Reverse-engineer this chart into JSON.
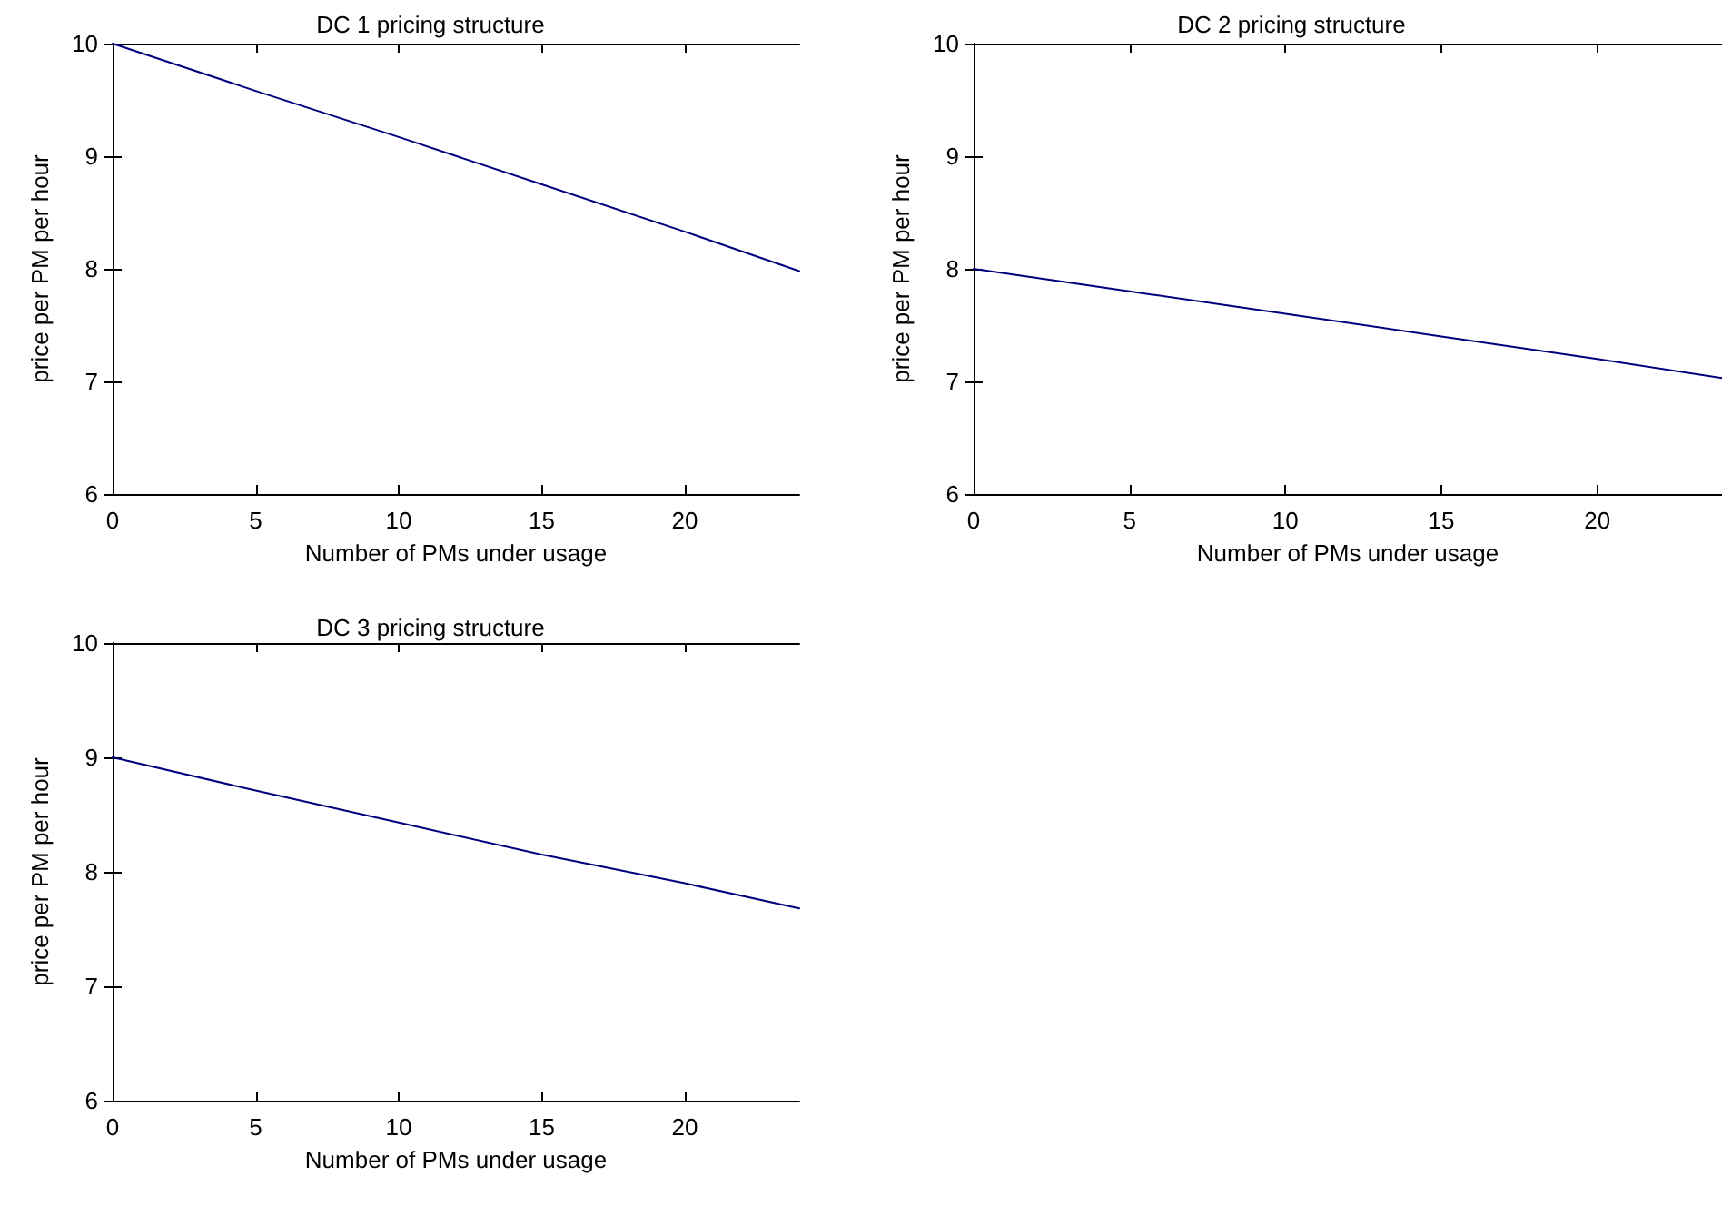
{
  "chart_data": [
    {
      "type": "line",
      "title": "DC 1 pricing structure",
      "xlabel": "Number of PMs under usage",
      "ylabel": "price per PM per hour",
      "x": [
        0,
        5,
        10,
        15,
        20,
        24
      ],
      "series": [
        {
          "color": "#00007f",
          "values": [
            10,
            9.58,
            9.17,
            8.75,
            8.33,
            7.98
          ]
        }
      ],
      "xlim": [
        0,
        24
      ],
      "ylim": [
        6,
        10
      ],
      "xticks": [
        0,
        5,
        10,
        15,
        20
      ],
      "yticks": [
        6,
        7,
        8,
        9,
        10
      ],
      "grid": false
    },
    {
      "type": "line",
      "title": "DC 2 pricing structure",
      "xlabel": "Number of PMs under usage",
      "ylabel": "price per PM per hour",
      "x": [
        0,
        5,
        10,
        15,
        20,
        24
      ],
      "series": [
        {
          "color": "#00007f",
          "values": [
            8,
            7.8,
            7.6,
            7.4,
            7.2,
            7.03
          ]
        }
      ],
      "xlim": [
        0,
        24
      ],
      "ylim": [
        6,
        10
      ],
      "xticks": [
        0,
        5,
        10,
        15,
        20
      ],
      "yticks": [
        6,
        7,
        8,
        9,
        10
      ],
      "grid": false
    },
    {
      "type": "line",
      "title": "DC 3 pricing structure",
      "xlabel": "Number of PMs under usage",
      "ylabel": "price per PM per hour",
      "x": [
        0,
        5,
        10,
        15,
        20,
        24
      ],
      "series": [
        {
          "color": "#00007f",
          "values": [
            9,
            8.71,
            8.43,
            8.15,
            7.9,
            7.68
          ]
        }
      ],
      "xlim": [
        0,
        24
      ],
      "ylim": [
        6,
        10
      ],
      "xticks": [
        0,
        5,
        10,
        15,
        20
      ],
      "yticks": [
        6,
        7,
        8,
        9,
        10
      ],
      "grid": false
    }
  ]
}
